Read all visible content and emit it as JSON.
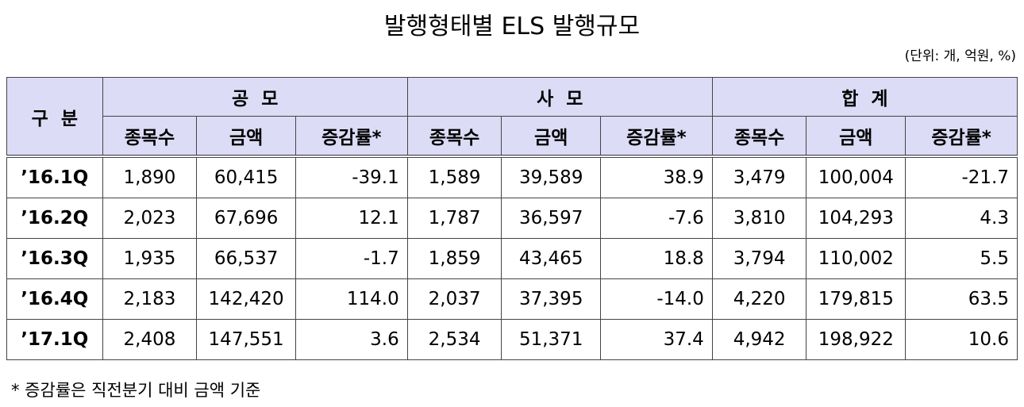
{
  "header": {
    "title": "발행형태별 ELS 발행규모",
    "unit": "(단위: 개, 억원, %)"
  },
  "table": {
    "corner": "구  분",
    "groups": [
      "공  모",
      "사  모",
      "합  계"
    ],
    "columns": [
      "종목수",
      "금액",
      "증감률*",
      "종목수",
      "금액",
      "증감률*",
      "종목수",
      "금액",
      "증감률*"
    ],
    "rows": [
      [
        "’16.1Q",
        "1,890",
        "60,415",
        "-39.1",
        "1,589",
        "39,589",
        "38.9",
        "3,479",
        "100,004",
        "-21.7"
      ],
      [
        "’16.2Q",
        "2,023",
        "67,696",
        "12.1",
        "1,787",
        "36,597",
        "-7.6",
        "3,810",
        "104,293",
        "4.3"
      ],
      [
        "’16.3Q",
        "1,935",
        "66,537",
        "-1.7",
        "1,859",
        "43,465",
        "18.8",
        "3,794",
        "110,002",
        "5.5"
      ],
      [
        "’16.4Q",
        "2,183",
        "142,420",
        "114.0",
        "2,037",
        "37,395",
        "-14.0",
        "4,220",
        "179,815",
        "63.5"
      ],
      [
        "’17.1Q",
        "2,408",
        "147,551",
        "3.6",
        "2,534",
        "51,371",
        "37.4",
        "4,942",
        "198,922",
        "10.6"
      ]
    ]
  },
  "footnote": "* 증감률은 직전분기 대비 금액 기준"
}
